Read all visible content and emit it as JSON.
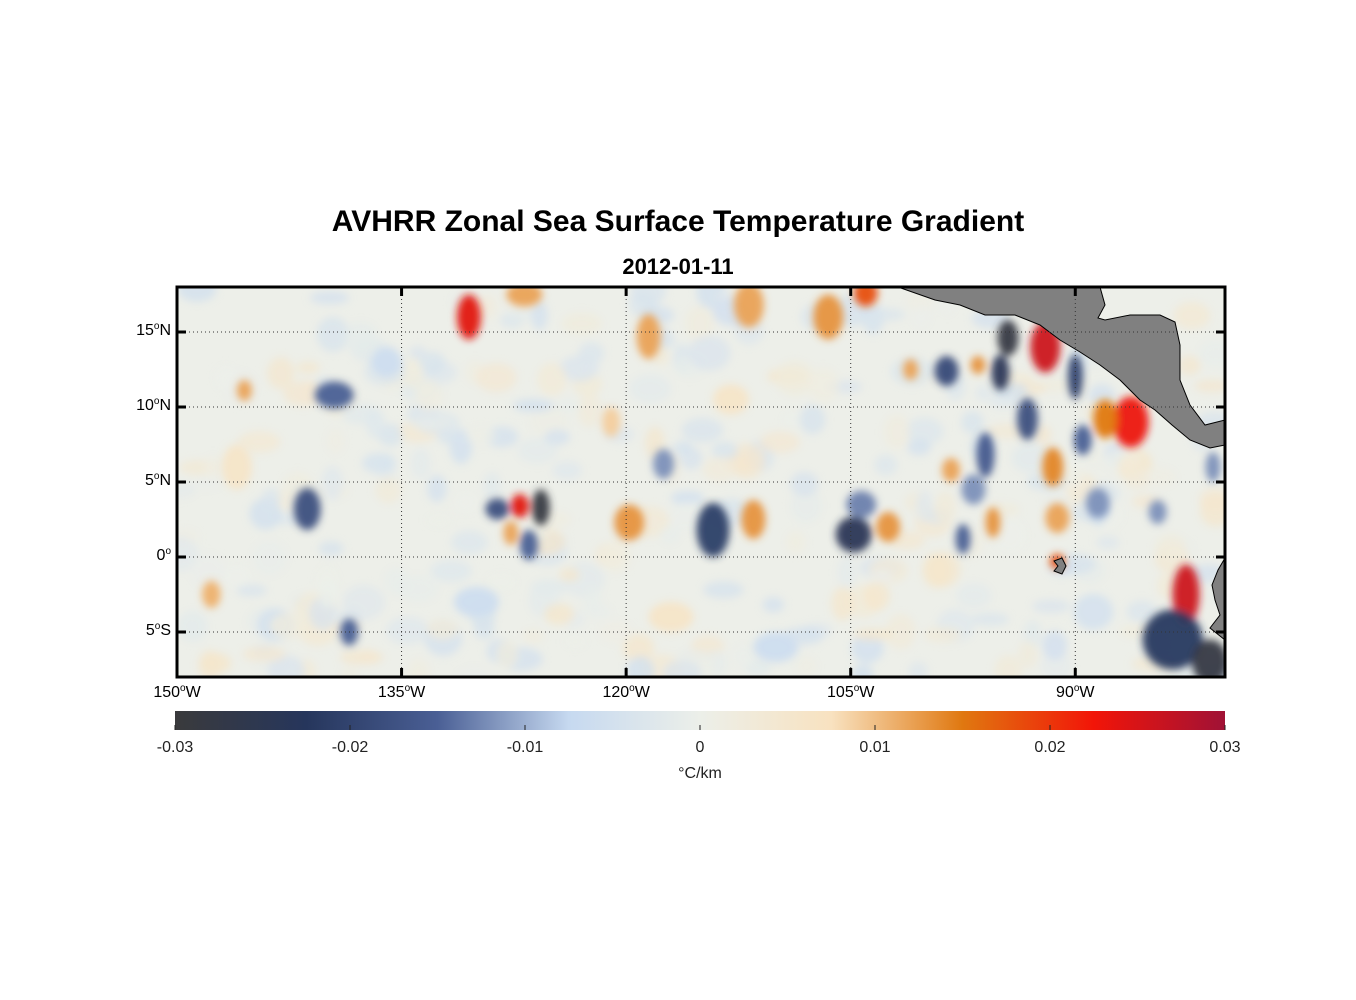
{
  "header": {
    "title": "AVHRR Zonal Sea Surface Temperature Gradient",
    "subtitle": "2012-01-11"
  },
  "map": {
    "lon_range": [
      -150,
      -80
    ],
    "lat_range": [
      -8,
      18
    ],
    "lat_ticks": [
      {
        "value": 15,
        "num": "15",
        "sup": "o",
        "hemi": "N"
      },
      {
        "value": 10,
        "num": "10",
        "sup": "o",
        "hemi": "N"
      },
      {
        "value": 5,
        "num": "5",
        "sup": "o",
        "hemi": "N"
      },
      {
        "value": 0,
        "num": "0",
        "sup": "o",
        "hemi": ""
      },
      {
        "value": -5,
        "num": "5",
        "sup": "o",
        "hemi": "S"
      }
    ],
    "lon_ticks": [
      {
        "value": -150,
        "num": "150",
        "sup": "o",
        "hemi": "W"
      },
      {
        "value": -135,
        "num": "135",
        "sup": "o",
        "hemi": "W"
      },
      {
        "value": -120,
        "num": "120",
        "sup": "o",
        "hemi": "W"
      },
      {
        "value": -105,
        "num": "105",
        "sup": "o",
        "hemi": "W"
      },
      {
        "value": -90,
        "num": "90",
        "sup": "o",
        "hemi": "W"
      }
    ],
    "land_color": "#808080",
    "frame_color": "#000000"
  },
  "colorbar": {
    "ticks": [
      "-0.03",
      "-0.02",
      "-0.01",
      "0",
      "0.01",
      "0.02",
      "0.03"
    ],
    "units": "°C/km",
    "colors": [
      "#3a3a3c",
      "#26365c",
      "#4a5f95",
      "#c6d9f0",
      "#ecefe9",
      "#f8e2c0",
      "#e07810",
      "#f21508",
      "#a01236"
    ]
  },
  "anomalies": [
    {
      "lon": -130.5,
      "lat": 16.0,
      "v": 0.024,
      "rx": 0.8,
      "ry": 1.5
    },
    {
      "lon": -126.8,
      "lat": 17.5,
      "v": 0.012,
      "rx": 1.2,
      "ry": 0.8
    },
    {
      "lon": -111.8,
      "lat": 16.8,
      "v": 0.012,
      "rx": 1.0,
      "ry": 1.5
    },
    {
      "lon": -118.5,
      "lat": 14.7,
      "v": 0.012,
      "rx": 0.8,
      "ry": 1.5
    },
    {
      "lon": -106.5,
      "lat": 16.0,
      "v": 0.013,
      "rx": 1.0,
      "ry": 1.5
    },
    {
      "lon": -104.0,
      "lat": 17.6,
      "v": 0.018,
      "rx": 0.8,
      "ry": 0.9
    },
    {
      "lon": -92.0,
      "lat": 14.0,
      "v": 0.026,
      "rx": 1.0,
      "ry": 1.7
    },
    {
      "lon": -94.5,
      "lat": 14.6,
      "v": -0.028,
      "rx": 0.7,
      "ry": 1.2
    },
    {
      "lon": -95.0,
      "lat": 12.3,
      "v": -0.024,
      "rx": 0.6,
      "ry": 1.2
    },
    {
      "lon": -98.6,
      "lat": 12.4,
      "v": -0.019,
      "rx": 0.8,
      "ry": 1.0
    },
    {
      "lon": -96.5,
      "lat": 12.8,
      "v": 0.013,
      "rx": 0.5,
      "ry": 0.6
    },
    {
      "lon": -90.0,
      "lat": 12.0,
      "v": -0.02,
      "rx": 0.5,
      "ry": 1.5
    },
    {
      "lon": -86.3,
      "lat": 9.0,
      "v": 0.023,
      "rx": 1.2,
      "ry": 1.7
    },
    {
      "lon": -88.0,
      "lat": 9.2,
      "v": 0.015,
      "rx": 0.8,
      "ry": 1.3
    },
    {
      "lon": -93.2,
      "lat": 9.2,
      "v": -0.018,
      "rx": 0.7,
      "ry": 1.4
    },
    {
      "lon": -89.5,
      "lat": 7.8,
      "v": -0.015,
      "rx": 0.6,
      "ry": 1.0
    },
    {
      "lon": -91.5,
      "lat": 6.0,
      "v": 0.014,
      "rx": 0.7,
      "ry": 1.3
    },
    {
      "lon": -96.0,
      "lat": 6.8,
      "v": -0.016,
      "rx": 0.6,
      "ry": 1.5
    },
    {
      "lon": -82.6,
      "lat": -2.5,
      "v": 0.026,
      "rx": 0.9,
      "ry": 2.0
    },
    {
      "lon": -83.5,
      "lat": -5.5,
      "v": -0.022,
      "rx": 2.0,
      "ry": 2.0
    },
    {
      "lon": -81.0,
      "lat": -7.0,
      "v": -0.028,
      "rx": 1.2,
      "ry": 1.5
    },
    {
      "lon": -127.1,
      "lat": 3.4,
      "v": 0.024,
      "rx": 0.6,
      "ry": 0.8
    },
    {
      "lon": -125.7,
      "lat": 3.3,
      "v": -0.029,
      "rx": 0.6,
      "ry": 1.2
    },
    {
      "lon": -128.6,
      "lat": 3.2,
      "v": -0.018,
      "rx": 0.8,
      "ry": 0.7
    },
    {
      "lon": -126.5,
      "lat": 0.8,
      "v": -0.015,
      "rx": 0.6,
      "ry": 1.0
    },
    {
      "lon": -127.7,
      "lat": 1.6,
      "v": 0.012,
      "rx": 0.5,
      "ry": 0.8
    },
    {
      "lon": -141.3,
      "lat": 3.2,
      "v": -0.018,
      "rx": 0.9,
      "ry": 1.4
    },
    {
      "lon": -114.2,
      "lat": 1.8,
      "v": -0.021,
      "rx": 1.1,
      "ry": 1.8
    },
    {
      "lon": -119.8,
      "lat": 2.3,
      "v": 0.013,
      "rx": 1.0,
      "ry": 1.2
    },
    {
      "lon": -111.5,
      "lat": 2.5,
      "v": 0.013,
      "rx": 0.8,
      "ry": 1.3
    },
    {
      "lon": -104.8,
      "lat": 1.5,
      "v": -0.024,
      "rx": 1.2,
      "ry": 1.2
    },
    {
      "lon": -102.5,
      "lat": 2.0,
      "v": 0.013,
      "rx": 0.8,
      "ry": 1.0
    },
    {
      "lon": -104.3,
      "lat": 3.5,
      "v": -0.013,
      "rx": 1.0,
      "ry": 0.9
    },
    {
      "lon": -97.5,
      "lat": 1.2,
      "v": -0.015,
      "rx": 0.5,
      "ry": 1.0
    },
    {
      "lon": -95.5,
      "lat": 2.3,
      "v": 0.013,
      "rx": 0.5,
      "ry": 1.0
    },
    {
      "lon": -91.2,
      "lat": 2.6,
      "v": 0.012,
      "rx": 0.8,
      "ry": 1.0
    },
    {
      "lon": -91.2,
      "lat": -0.3,
      "v": 0.018,
      "rx": 0.5,
      "ry": 0.5
    },
    {
      "lon": -147.7,
      "lat": -2.5,
      "v": 0.011,
      "rx": 0.6,
      "ry": 0.9
    },
    {
      "lon": -138.5,
      "lat": -5.0,
      "v": -0.015,
      "rx": 0.6,
      "ry": 0.9
    },
    {
      "lon": -139.5,
      "lat": 10.8,
      "v": -0.015,
      "rx": 1.3,
      "ry": 0.9
    },
    {
      "lon": -145.5,
      "lat": 11.1,
      "v": 0.012,
      "rx": 0.5,
      "ry": 0.7
    },
    {
      "lon": -101.0,
      "lat": 12.5,
      "v": 0.012,
      "rx": 0.5,
      "ry": 0.7
    },
    {
      "lon": -96.8,
      "lat": 4.5,
      "v": -0.012,
      "rx": 0.8,
      "ry": 1.0
    },
    {
      "lon": -98.3,
      "lat": 5.8,
      "v": 0.012,
      "rx": 0.6,
      "ry": 0.8
    },
    {
      "lon": -88.5,
      "lat": 3.6,
      "v": -0.012,
      "rx": 0.8,
      "ry": 1.0
    },
    {
      "lon": -84.5,
      "lat": 3.0,
      "v": -0.012,
      "rx": 0.6,
      "ry": 0.8
    },
    {
      "lon": -80.8,
      "lat": 6.0,
      "v": -0.012,
      "rx": 0.5,
      "ry": 1.0
    },
    {
      "lon": -117.5,
      "lat": 6.2,
      "v": -0.012,
      "rx": 0.7,
      "ry": 1.0
    },
    {
      "lon": -121.0,
      "lat": 9.0,
      "v": 0.009,
      "rx": 0.6,
      "ry": 1.0
    },
    {
      "lon": -136.0,
      "lat": 13.0,
      "v": -0.006,
      "rx": 1.0,
      "ry": 1.0
    },
    {
      "lon": -113.0,
      "lat": 10.5,
      "v": 0.006,
      "rx": 1.2,
      "ry": 1.0
    },
    {
      "lon": -130.0,
      "lat": -3.0,
      "v": -0.006,
      "rx": 1.5,
      "ry": 1.0
    },
    {
      "lon": -117.0,
      "lat": -4.0,
      "v": 0.006,
      "rx": 1.5,
      "ry": 1.0
    },
    {
      "lon": -110.0,
      "lat": -6.0,
      "v": -0.006,
      "rx": 1.5,
      "ry": 1.0
    },
    {
      "lon": -146.0,
      "lat": 6.0,
      "v": 0.006,
      "rx": 1.0,
      "ry": 1.5
    }
  ]
}
